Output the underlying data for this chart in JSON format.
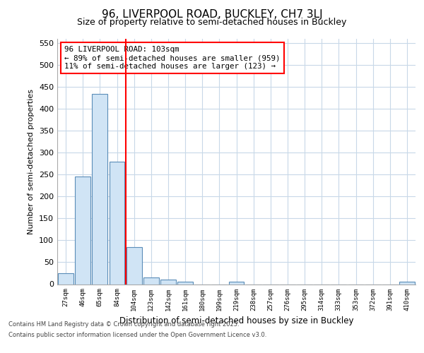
{
  "title": "96, LIVERPOOL ROAD, BUCKLEY, CH7 3LJ",
  "subtitle": "Size of property relative to semi-detached houses in Buckley",
  "xlabel": "Distribution of semi-detached houses by size in Buckley",
  "ylabel": "Number of semi-detached properties",
  "bin_labels": [
    "27sqm",
    "46sqm",
    "65sqm",
    "84sqm",
    "104sqm",
    "123sqm",
    "142sqm",
    "161sqm",
    "180sqm",
    "199sqm",
    "219sqm",
    "238sqm",
    "257sqm",
    "276sqm",
    "295sqm",
    "314sqm",
    "333sqm",
    "353sqm",
    "372sqm",
    "391sqm",
    "410sqm"
  ],
  "bar_values": [
    25,
    245,
    435,
    280,
    85,
    15,
    10,
    5,
    0,
    0,
    5,
    0,
    0,
    0,
    0,
    0,
    0,
    0,
    0,
    0,
    5
  ],
  "bar_color": "#d0e4f5",
  "bar_edge_color": "#5b8db8",
  "property_line_bin": 4,
  "annotation_text": "96 LIVERPOOL ROAD: 103sqm\n← 89% of semi-detached houses are smaller (959)\n11% of semi-detached houses are larger (123) →",
  "ylim": [
    0,
    560
  ],
  "yticks": [
    0,
    50,
    100,
    150,
    200,
    250,
    300,
    350,
    400,
    450,
    500,
    550
  ],
  "bg_color": "#ffffff",
  "plot_bg_color": "#ffffff",
  "grid_color": "#c8d8e8",
  "footer_line1": "Contains HM Land Registry data © Crown copyright and database right 2025.",
  "footer_line2": "Contains public sector information licensed under the Open Government Licence v3.0."
}
